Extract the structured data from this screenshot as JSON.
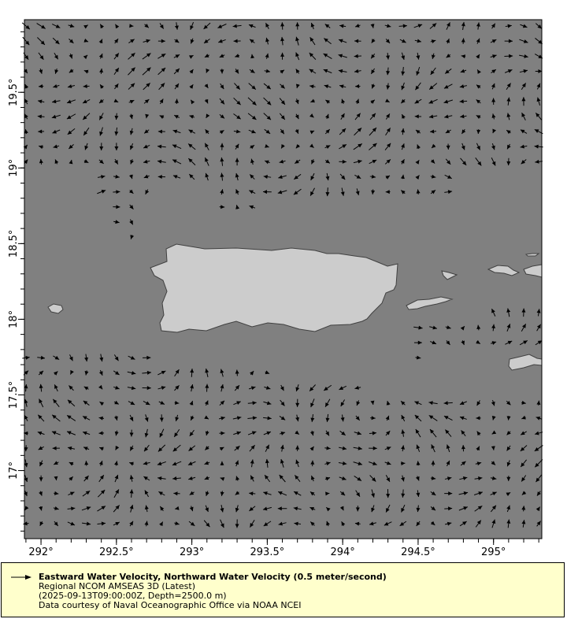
{
  "chart_data": {
    "type": "vector",
    "xlim": [
      291.89,
      295.32
    ],
    "ylim": [
      16.55,
      19.98
    ],
    "x_ticks": [
      "292°",
      "292.5°",
      "293°",
      "293.5°",
      "294°",
      "294.5°",
      "295°"
    ],
    "x_tick_values": [
      292,
      292.5,
      293,
      293.5,
      294,
      294.5,
      295
    ],
    "y_ticks": [
      "17°",
      "17.5°",
      "18°",
      "18.5°",
      "19°",
      "19.5°"
    ],
    "y_tick_values": [
      17,
      17.5,
      18,
      18.5,
      19,
      19.5
    ],
    "grid": false,
    "vector_grid_spacing_deg": 0.1,
    "reference_vector": "0.5 meter/second"
  },
  "colors": {
    "ocean": "#808080",
    "land": "#cccccc",
    "coastline": "#404040",
    "arrow": "#000000",
    "legend_bg": "#ffffcc"
  },
  "legend": {
    "title": "Eastward Water Velocity, Northward Water Velocity (0.5 meter/second)",
    "line1": "Regional NCOM AMSEAS 3D (Latest)",
    "line2": "(2025-09-13T09:00:00Z, Depth=2500.0 m)",
    "line3": "Data courtesy of Naval Oceanographic Office via NOAA NCEI"
  }
}
